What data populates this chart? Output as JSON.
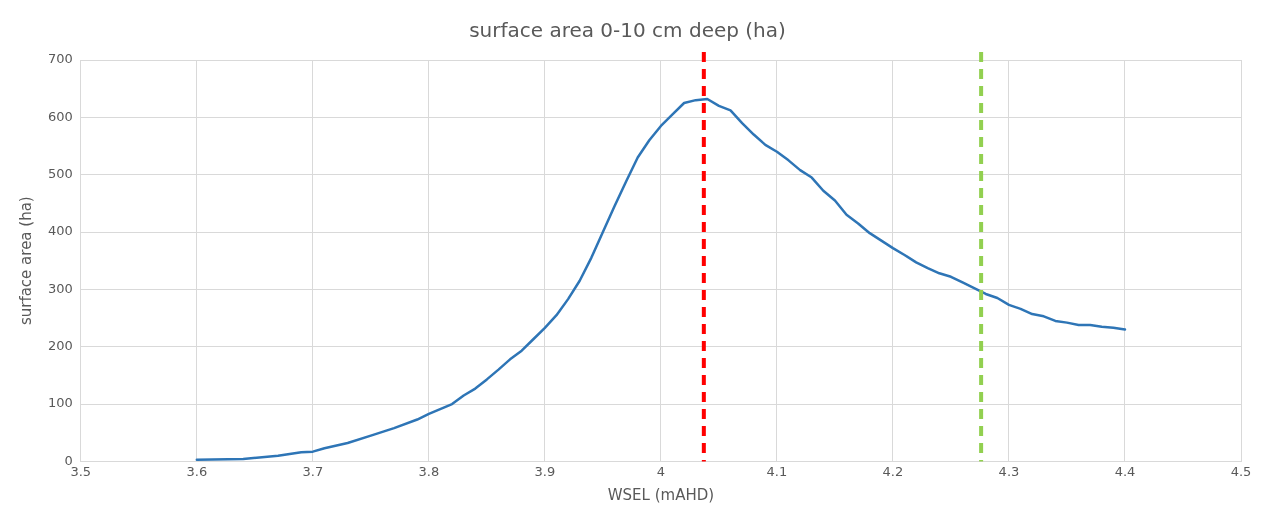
{
  "chart_data": {
    "type": "line",
    "title": "surface area 0-10 cm deep (ha)",
    "xlabel": "WSEL (mAHD)",
    "ylabel": "surface area (ha)",
    "x": [
      3.6,
      3.64,
      3.67,
      3.69,
      3.7,
      3.71,
      3.73,
      3.75,
      3.77,
      3.79,
      3.8,
      3.82,
      3.83,
      3.84,
      3.85,
      3.86,
      3.87,
      3.88,
      3.89,
      3.9,
      3.91,
      3.92,
      3.93,
      3.94,
      3.95,
      3.96,
      3.97,
      3.98,
      3.99,
      4.0,
      4.01,
      4.02,
      4.03,
      4.04,
      4.05,
      4.06,
      4.07,
      4.08,
      4.09,
      4.1,
      4.11,
      4.12,
      4.13,
      4.14,
      4.15,
      4.16,
      4.17,
      4.18,
      4.19,
      4.2,
      4.21,
      4.22,
      4.23,
      4.24,
      4.25,
      4.26,
      4.27,
      4.28,
      4.29,
      4.3,
      4.31,
      4.32,
      4.33,
      4.34,
      4.35,
      4.36,
      4.37,
      4.38,
      4.39,
      4.4
    ],
    "series": [
      {
        "color": "#2e75b6",
        "values": [
          3,
          4,
          10,
          16,
          17,
          23,
          32,
          45,
          58,
          73,
          83,
          100,
          115,
          127,
          143,
          160,
          178,
          193,
          213,
          233,
          255,
          283,
          315,
          355,
          400,
          445,
          488,
          530,
          560,
          585,
          605,
          625,
          630,
          632,
          620,
          612,
          590,
          570,
          552,
          540,
          525,
          508,
          495,
          472,
          455,
          430,
          415,
          398,
          385,
          372,
          360,
          347,
          337,
          328,
          322,
          312,
          302,
          292,
          285,
          273,
          266,
          257,
          253,
          245,
          242,
          238,
          238,
          235,
          233,
          230
        ]
      }
    ],
    "xlim": [
      3.5,
      4.5
    ],
    "xticks": [
      3.5,
      3.6,
      3.7,
      3.8,
      3.9,
      {
        "value": 4,
        "label": "4"
      },
      4.1,
      4.2,
      4.3,
      4.4,
      4.5
    ],
    "ylim": [
      0,
      700
    ],
    "yticks": [
      0,
      100,
      200,
      300,
      400,
      500,
      600,
      700
    ],
    "grid": true,
    "legend": false,
    "marker": "none",
    "line_style": "solid",
    "ref_lines": [
      {
        "axis": "x",
        "value": 4.037,
        "color": "#ff0000",
        "line_style": "dashed"
      },
      {
        "axis": "x",
        "value": 4.276,
        "color": "#92d050",
        "line_style": "dashed"
      }
    ]
  }
}
